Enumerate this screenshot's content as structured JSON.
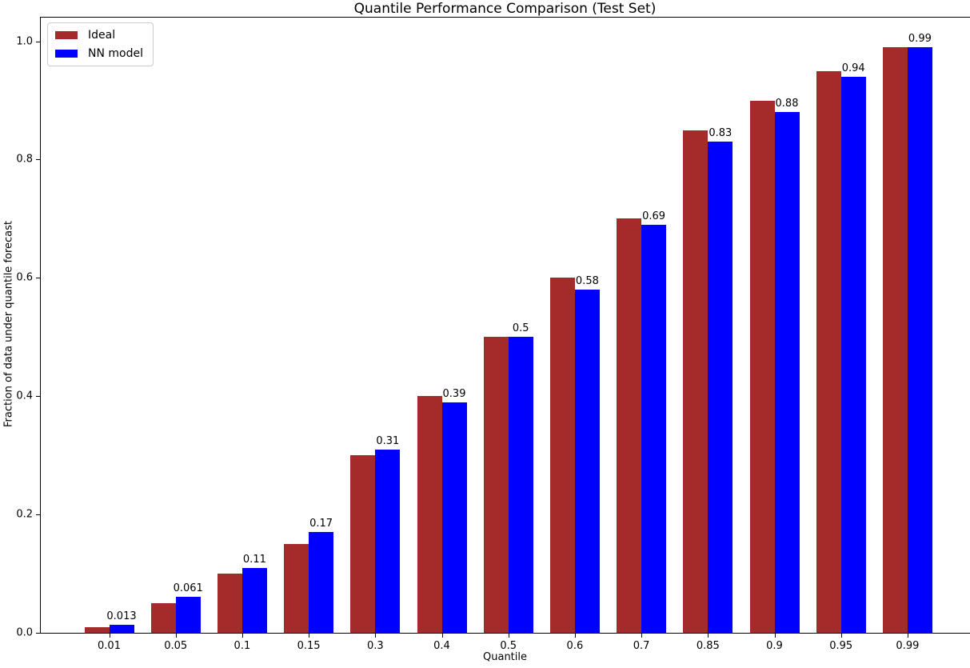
{
  "chart_data": {
    "type": "bar",
    "title": "Quantile Performance Comparison (Test Set)",
    "xlabel": "Quantile",
    "ylabel": "Fraction of data under quantile forecast",
    "categories": [
      "0.01",
      "0.05",
      "0.1",
      "0.15",
      "0.3",
      "0.4",
      "0.5",
      "0.6",
      "0.7",
      "0.85",
      "0.9",
      "0.95",
      "0.99"
    ],
    "series": [
      {
        "name": "Ideal",
        "color": "#a52a2a",
        "values": [
          0.01,
          0.05,
          0.1,
          0.15,
          0.3,
          0.4,
          0.5,
          0.6,
          0.7,
          0.85,
          0.9,
          0.95,
          0.99
        ]
      },
      {
        "name": "NN model",
        "color": "#0000ff",
        "values": [
          0.013,
          0.061,
          0.11,
          0.17,
          0.31,
          0.39,
          0.5,
          0.58,
          0.69,
          0.83,
          0.88,
          0.94,
          0.99
        ],
        "labels": [
          "0.013",
          "0.061",
          "0.11",
          "0.17",
          "0.31",
          "0.39",
          "0.5",
          "0.58",
          "0.69",
          "0.83",
          "0.88",
          "0.94",
          "0.99"
        ]
      }
    ],
    "ylim": [
      0,
      1.04
    ],
    "yticks": [
      "0.0",
      "0.2",
      "0.4",
      "0.6",
      "0.8",
      "1.0"
    ],
    "legend_position": "upper left",
    "grid": false,
    "bar_value_labels_on": "NN model"
  }
}
